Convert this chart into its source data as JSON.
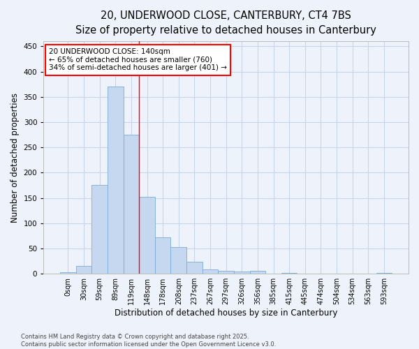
{
  "title_line1": "20, UNDERWOOD CLOSE, CANTERBURY, CT4 7BS",
  "title_line2": "Size of property relative to detached houses in Canterbury",
  "xlabel": "Distribution of detached houses by size in Canterbury",
  "ylabel": "Number of detached properties",
  "bar_labels": [
    "0sqm",
    "30sqm",
    "59sqm",
    "89sqm",
    "119sqm",
    "148sqm",
    "178sqm",
    "208sqm",
    "237sqm",
    "267sqm",
    "297sqm",
    "326sqm",
    "356sqm",
    "385sqm",
    "415sqm",
    "445sqm",
    "474sqm",
    "504sqm",
    "534sqm",
    "563sqm",
    "593sqm"
  ],
  "bar_values": [
    3,
    15,
    175,
    370,
    275,
    152,
    72,
    53,
    24,
    9,
    6,
    5,
    6,
    0,
    2,
    0,
    0,
    0,
    0,
    0,
    2
  ],
  "bar_color": "#c5d8f0",
  "bar_edge_color": "#7aadd4",
  "bar_width": 1.0,
  "ylim": [
    0,
    460
  ],
  "yticks": [
    0,
    50,
    100,
    150,
    200,
    250,
    300,
    350,
    400,
    450
  ],
  "grid_color": "#c8d4e8",
  "background_color": "#eef2fa",
  "red_line_x": 4.5,
  "annotation_text": "20 UNDERWOOD CLOSE: 140sqm\n← 65% of detached houses are smaller (760)\n34% of semi-detached houses are larger (401) →",
  "annotation_box_color": "white",
  "annotation_box_edge": "red",
  "footer_line1": "Contains HM Land Registry data © Crown copyright and database right 2025.",
  "footer_line2": "Contains public sector information licensed under the Open Government Licence v3.0.",
  "title_fontsize": 10.5,
  "subtitle_fontsize": 9.5,
  "tick_fontsize": 7,
  "ylabel_fontsize": 8.5,
  "xlabel_fontsize": 8.5,
  "annotation_fontsize": 7.5,
  "footer_fontsize": 6
}
